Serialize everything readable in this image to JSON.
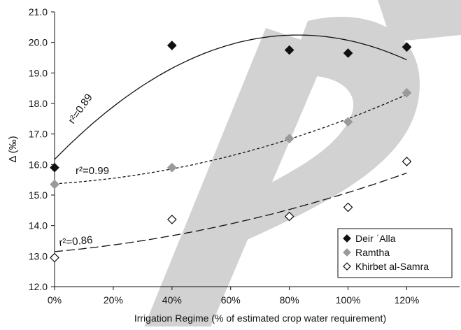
{
  "chart_data": {
    "type": "scatter",
    "xlabel": "Irrigation Regime (% of estimated crop water requirement)",
    "ylabel": "Δ (‰)",
    "x_ticks": [
      "0%",
      "20%",
      "40%",
      "60%",
      "80%",
      "100%",
      "120%"
    ],
    "y_ticks": [
      "12.0",
      "13.0",
      "14.0",
      "15.0",
      "16.0",
      "17.0",
      "18.0",
      "19.0",
      "20.0",
      "21.0"
    ],
    "xlim": [
      0,
      1.38
    ],
    "ylim": [
      12.0,
      21.0
    ],
    "grid": false,
    "legend_position": "bottom-right",
    "series": [
      {
        "name": "Deir ʿAlla",
        "marker": "filled-diamond",
        "color": "#111111",
        "x": [
          0,
          0.4,
          0.8,
          1.0,
          1.2
        ],
        "y": [
          15.9,
          19.9,
          19.75,
          19.65,
          19.85
        ],
        "fit": "quadratic",
        "fit_style": "solid",
        "r2_label": "r²=0.89"
      },
      {
        "name": "Ramtha",
        "marker": "filled-diamond",
        "color": "#9a9a9a",
        "x": [
          0,
          0.4,
          0.8,
          1.0,
          1.2
        ],
        "y": [
          15.35,
          15.9,
          16.85,
          17.4,
          18.35
        ],
        "fit": "quadratic",
        "fit_style": "short-dash",
        "r2_label": "r²=0.99"
      },
      {
        "name": "Khirbet al-Samra",
        "marker": "open-diamond",
        "color": "#111111",
        "x": [
          0,
          0.4,
          0.8,
          1.0,
          1.2
        ],
        "y": [
          12.95,
          14.2,
          14.3,
          14.6,
          16.1
        ],
        "fit": "quadratic",
        "fit_style": "long-dash",
        "r2_label": "r²=0.86"
      }
    ]
  }
}
